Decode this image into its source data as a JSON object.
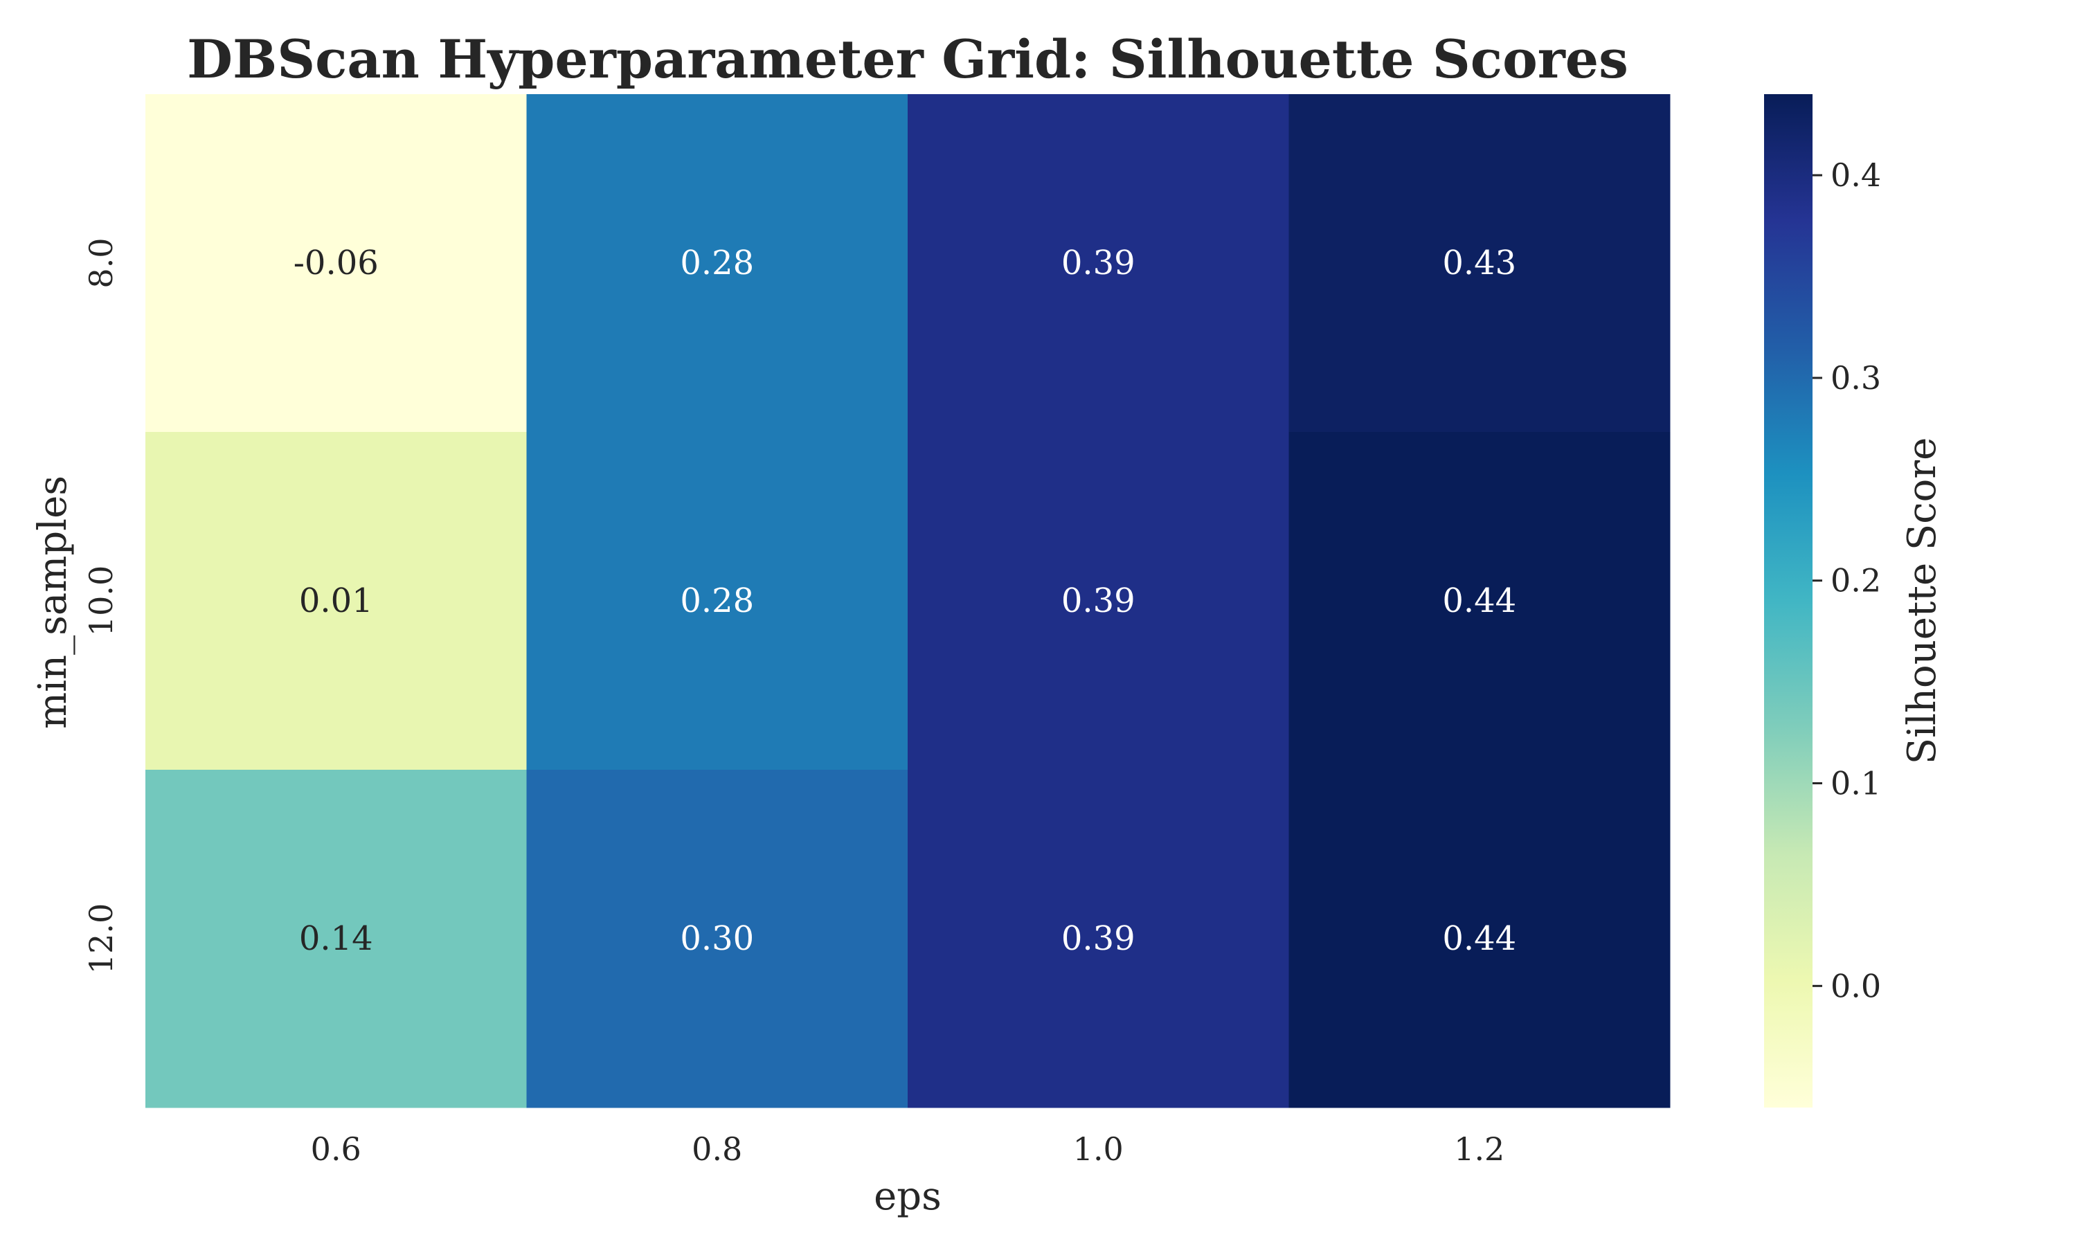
{
  "chart_data": {
    "type": "heatmap",
    "title": "DBScan Hyperparameter Grid: Silhouette Scores",
    "xlabel": "eps",
    "ylabel": "min_samples",
    "x_categories": [
      "0.6",
      "0.8",
      "1.0",
      "1.2"
    ],
    "y_categories": [
      "8.0",
      "10.0",
      "12.0"
    ],
    "values": [
      [
        -0.06,
        0.28,
        0.39,
        0.43
      ],
      [
        0.01,
        0.28,
        0.39,
        0.44
      ],
      [
        0.14,
        0.3,
        0.39,
        0.44
      ]
    ],
    "value_labels": [
      [
        "-0.06",
        "0.28",
        "0.39",
        "0.43"
      ],
      [
        "0.01",
        "0.28",
        "0.39",
        "0.44"
      ],
      [
        "0.14",
        "0.30",
        "0.39",
        "0.44"
      ]
    ],
    "colorbar": {
      "label": "Silhouette Score",
      "colormap": "YlGnBu",
      "vmin": -0.06,
      "vmax": 0.44,
      "ticks": [
        0.0,
        0.1,
        0.2,
        0.3,
        0.4
      ],
      "tick_labels": [
        "0.0",
        "0.1",
        "0.2",
        "0.3",
        "0.4"
      ]
    },
    "grid": false
  }
}
